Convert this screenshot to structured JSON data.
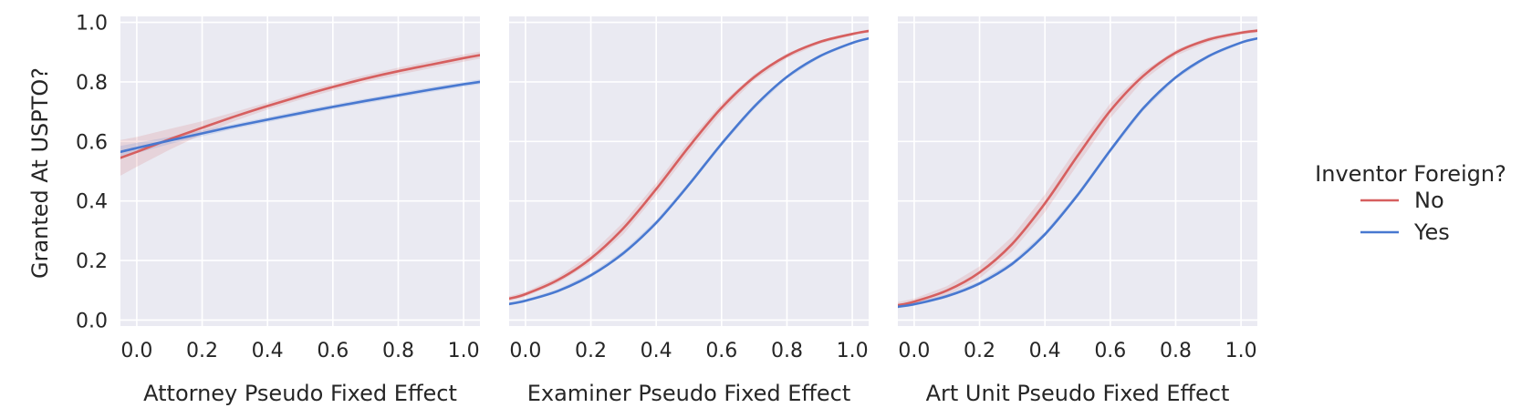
{
  "figure": {
    "ylabel": "Granted At USPTO?",
    "legend": {
      "title": "Inventor Foreign?",
      "placement": "right",
      "entries": [
        {
          "label": "No",
          "color": "#d65f5f"
        },
        {
          "label": "Yes",
          "color": "#4878d0"
        }
      ]
    }
  },
  "chart_data": [
    {
      "type": "line",
      "xlabel": "Attorney Pseudo Fixed Effect",
      "xlim": [
        -0.05,
        1.05
      ],
      "ylim": [
        -0.02,
        1.02
      ],
      "xticks": [
        "0.0",
        "0.2",
        "0.4",
        "0.6",
        "0.8",
        "1.0"
      ],
      "yticks": [
        "0.0",
        "0.2",
        "0.4",
        "0.6",
        "0.8",
        "1.0"
      ],
      "grid": true,
      "x": [
        -0.05,
        0.0,
        0.1,
        0.2,
        0.3,
        0.4,
        0.5,
        0.6,
        0.7,
        0.8,
        0.9,
        1.0,
        1.05
      ],
      "series": [
        {
          "name": "No",
          "color": "#d65f5f",
          "values": [
            0.545,
            0.565,
            0.607,
            0.646,
            0.684,
            0.719,
            0.752,
            0.783,
            0.811,
            0.836,
            0.858,
            0.88,
            0.89
          ],
          "ci_halfwidth": [
            0.06,
            0.05,
            0.035,
            0.022,
            0.015,
            0.012,
            0.012,
            0.012,
            0.012,
            0.012,
            0.012,
            0.012,
            0.012
          ]
        },
        {
          "name": "Yes",
          "color": "#4878d0",
          "values": [
            0.565,
            0.578,
            0.603,
            0.627,
            0.651,
            0.673,
            0.695,
            0.716,
            0.736,
            0.755,
            0.774,
            0.792,
            0.8
          ],
          "ci_halfwidth": [
            0.02,
            0.017,
            0.012,
            0.01,
            0.008,
            0.008,
            0.008,
            0.008,
            0.008,
            0.008,
            0.008,
            0.008,
            0.008
          ]
        }
      ]
    },
    {
      "type": "line",
      "xlabel": "Examiner Pseudo Fixed Effect",
      "xlim": [
        -0.05,
        1.05
      ],
      "ylim": [
        -0.02,
        1.02
      ],
      "xticks": [
        "0.0",
        "0.2",
        "0.4",
        "0.6",
        "0.8",
        "1.0"
      ],
      "yticks": [
        "0.0",
        "0.2",
        "0.4",
        "0.6",
        "0.8",
        "1.0"
      ],
      "grid": true,
      "x": [
        -0.05,
        0.0,
        0.1,
        0.2,
        0.3,
        0.4,
        0.5,
        0.6,
        0.7,
        0.8,
        0.9,
        1.0,
        1.05
      ],
      "series": [
        {
          "name": "No",
          "color": "#d65f5f",
          "values": [
            0.072,
            0.087,
            0.135,
            0.207,
            0.309,
            0.44,
            0.582,
            0.713,
            0.816,
            0.888,
            0.934,
            0.961,
            0.971
          ],
          "ci_halfwidth": [
            0.008,
            0.008,
            0.01,
            0.015,
            0.02,
            0.02,
            0.02,
            0.015,
            0.01,
            0.008,
            0.006,
            0.005,
            0.005
          ]
        },
        {
          "name": "Yes",
          "color": "#4878d0",
          "values": [
            0.054,
            0.065,
            0.098,
            0.15,
            0.225,
            0.327,
            0.455,
            0.592,
            0.717,
            0.817,
            0.886,
            0.931,
            0.946
          ],
          "ci_halfwidth": [
            0.005,
            0.005,
            0.006,
            0.007,
            0.008,
            0.008,
            0.008,
            0.008,
            0.008,
            0.006,
            0.005,
            0.004,
            0.004
          ]
        }
      ]
    },
    {
      "type": "line",
      "xlabel": "Art Unit Pseudo Fixed Effect",
      "xlim": [
        -0.05,
        1.05
      ],
      "ylim": [
        -0.02,
        1.02
      ],
      "xticks": [
        "0.0",
        "0.2",
        "0.4",
        "0.6",
        "0.8",
        "1.0"
      ],
      "yticks": [
        "0.0",
        "0.2",
        "0.4",
        "0.6",
        "0.8",
        "1.0"
      ],
      "grid": true,
      "x": [
        -0.05,
        0.0,
        0.1,
        0.2,
        0.3,
        0.4,
        0.5,
        0.6,
        0.7,
        0.8,
        0.9,
        1.0,
        1.05
      ],
      "series": [
        {
          "name": "No",
          "color": "#d65f5f",
          "values": [
            0.05,
            0.062,
            0.099,
            0.16,
            0.256,
            0.392,
            0.552,
            0.703,
            0.819,
            0.898,
            0.942,
            0.965,
            0.972
          ],
          "ci_halfwidth": [
            0.01,
            0.01,
            0.015,
            0.02,
            0.025,
            0.03,
            0.03,
            0.025,
            0.015,
            0.01,
            0.008,
            0.006,
            0.006
          ]
        },
        {
          "name": "Yes",
          "color": "#4878d0",
          "values": [
            0.045,
            0.053,
            0.08,
            0.123,
            0.189,
            0.288,
            0.42,
            0.57,
            0.71,
            0.815,
            0.886,
            0.932,
            0.946
          ],
          "ci_halfwidth": [
            0.005,
            0.005,
            0.006,
            0.007,
            0.008,
            0.008,
            0.008,
            0.008,
            0.008,
            0.006,
            0.005,
            0.004,
            0.004
          ]
        }
      ]
    }
  ]
}
